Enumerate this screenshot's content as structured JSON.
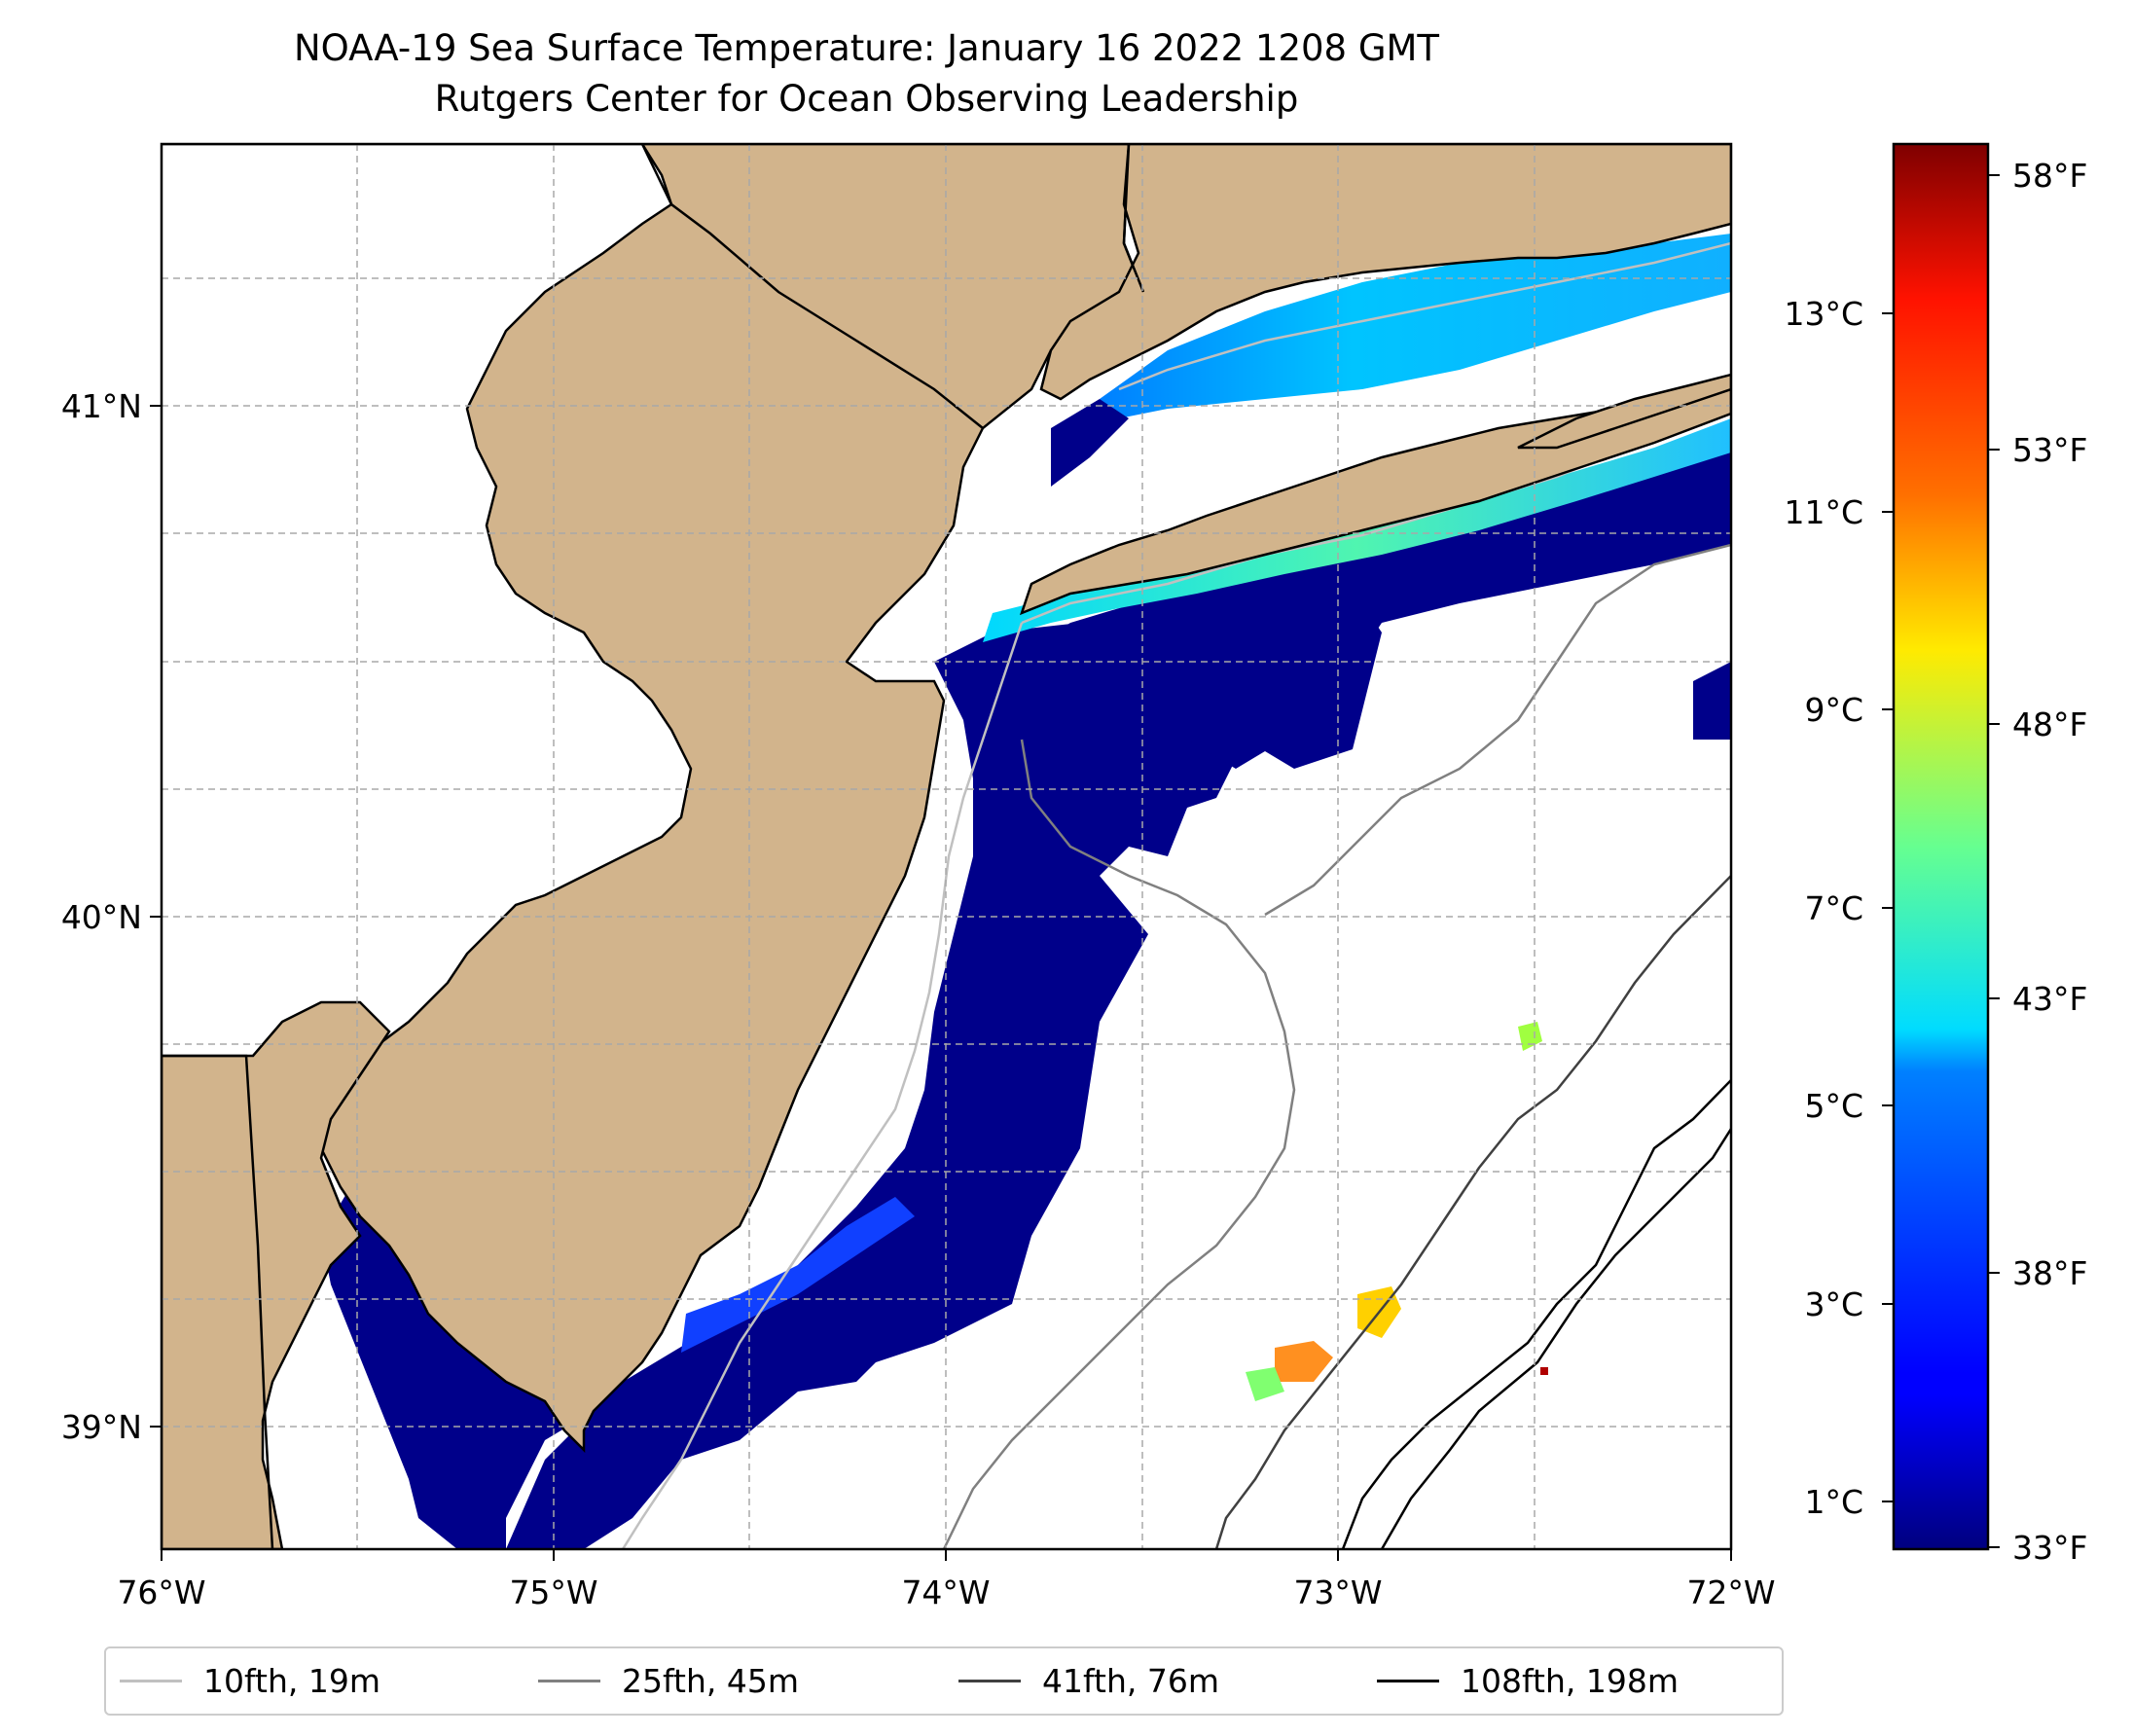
{
  "title": {
    "line1": "NOAA-19 Sea Surface Temperature: January 16 2022 1208 GMT",
    "line2": "Rutgers Center for Ocean Observing Leadership"
  },
  "map": {
    "projection": "PlateCarree",
    "lon_range": [
      -76,
      -72
    ],
    "lat_range": [
      38.75,
      41.5
    ],
    "land_color": "#d2b48c",
    "ocean_no_data_color": "#ffffff",
    "gridlines": "dashed gray",
    "x_tick_labels": [
      "76°W",
      "75°W",
      "74°W",
      "73°W",
      "72°W"
    ],
    "y_tick_labels": [
      "41°N",
      "40°N",
      "39°N"
    ]
  },
  "colorbar": {
    "colormap": "jet",
    "range_celsius": [
      0.5,
      14.7
    ],
    "celsius_labels": [
      "13°C",
      "11°C",
      "9°C",
      "7°C",
      "5°C",
      "3°C",
      "1°C"
    ],
    "fahrenheit_labels": [
      "58°F",
      "53°F",
      "48°F",
      "43°F",
      "38°F",
      "33°F"
    ]
  },
  "legend": {
    "items": [
      {
        "label": "10fth, 19m",
        "color": "#c0c0c0"
      },
      {
        "label": "25fth, 45m",
        "color": "#808080"
      },
      {
        "label": "41fth, 76m",
        "color": "#404040"
      },
      {
        "label": "108fth, 198m",
        "color": "#000000"
      }
    ]
  }
}
